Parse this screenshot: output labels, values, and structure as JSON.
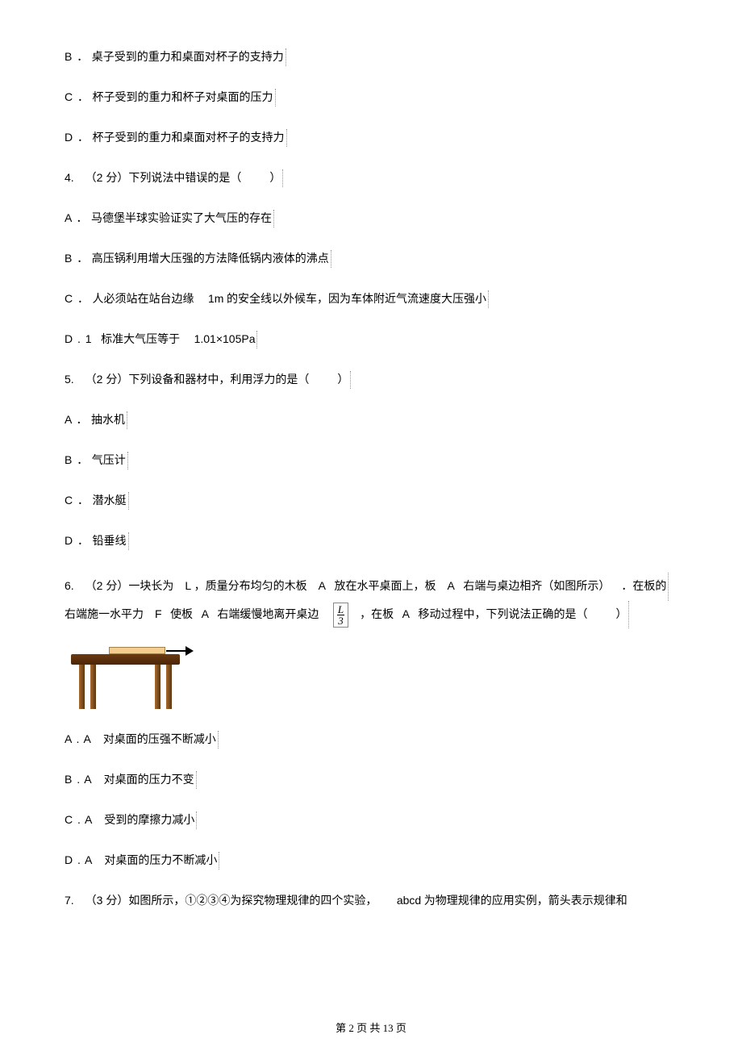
{
  "q3": {
    "B": "桌子受到的重力和桌面对杯子的支持力",
    "C": "杯子受到的重力和杯子对桌面的压力",
    "D": "杯子受到的重力和桌面对杯子的支持力"
  },
  "q4": {
    "stem_prefix": "4. （2 分）下列说法中错误的是（",
    "stem_suffix": "）",
    "A": "马德堡半球实验证实了大气压的存在",
    "B": "高压锅利用增大压强的方法降低锅内液体的沸点",
    "C_pre": "人必须站在站台边缘",
    "C_mid": "1m",
    "C_post": "的安全线以外候车，因为车体附近气流速度大压强小",
    "D_pre": "标准大气压等于",
    "D_mid": "1.01×105Pa"
  },
  "q5": {
    "stem_prefix": "5. （2 分）下列设备和器材中，利用浮力的是（",
    "stem_suffix": "）",
    "A": "抽水机",
    "B": "气压计",
    "C": "潜水艇",
    "D": "铅垂线"
  },
  "q6": {
    "stem_p1a": "6. （2 分）一块长为",
    "stem_p1b": "L",
    "stem_p1c": "，质量分布均匀的木板",
    "stem_p1d": "A",
    "stem_p1e": "放在水平桌面上，板",
    "stem_p1f": "A",
    "stem_p1g": "右端与桌边相齐（如图所示）",
    "stem_p1h": "．在板的",
    "stem_p2a": "右端施一水平力",
    "stem_p2b": "F",
    "stem_p2c": "使板",
    "stem_p2d": "A",
    "stem_p2e": "右端缓慢地离开桌边",
    "stem_p2f": "，在板",
    "stem_p2g": "A",
    "stem_p2h": "移动过程中，下列说法正确的是（",
    "stem_p2i": "）",
    "frac_num": "L",
    "frac_den": "3",
    "A": "对桌面的压强不断减小",
    "B": "对桌面的压力不变",
    "C": "受到的摩擦力减小",
    "D": "对桌面的压力不断减小"
  },
  "q7": {
    "stem_a": "7. （3 分）如图所示，①②③④为探究物理规律的四个实验，",
    "stem_b": "abcd",
    "stem_c": " 为物理规律的应用实例，箭头表示规律和"
  },
  "footer": {
    "text": "第  2  页  共  13  页"
  },
  "labels": {
    "B": "B ．",
    "C": "C ．",
    "D": "D ．",
    "A": "A ．",
    "D1": "D . 1",
    "AA": "A . A",
    "BA": "B . A",
    "CA": "C . A",
    "DA": "D . A"
  }
}
